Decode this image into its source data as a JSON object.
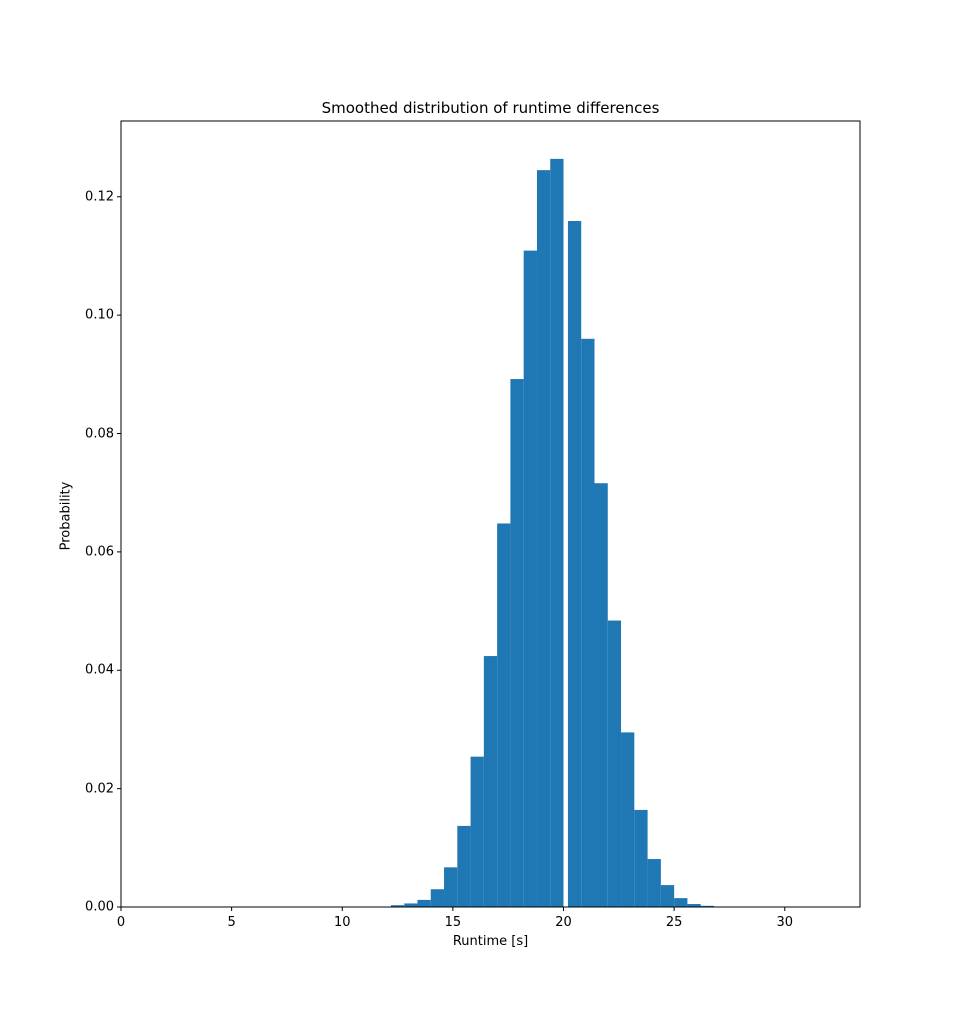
{
  "chart_data": {
    "type": "bar",
    "title": "Smoothed distribution of runtime differences",
    "xlabel": "Runtime [s]",
    "ylabel": "Probability",
    "xlim": [
      0,
      33.4
    ],
    "ylim": [
      0,
      0.1328
    ],
    "xticks": [
      0,
      5,
      10,
      15,
      20,
      25,
      30
    ],
    "xtick_labels": [
      "0",
      "5",
      "10",
      "15",
      "20",
      "25",
      "30"
    ],
    "yticks": [
      0.0,
      0.02,
      0.04,
      0.06,
      0.08,
      0.1,
      0.12
    ],
    "ytick_labels": [
      "0.00",
      "0.02",
      "0.04",
      "0.06",
      "0.08",
      "0.10",
      "0.12"
    ],
    "grid": false,
    "legend": null,
    "color": "#1f77b4",
    "bin_width": 0.6,
    "bin_starts": [
      12.2,
      12.8,
      13.4,
      14.0,
      14.6,
      15.2,
      15.8,
      16.4,
      17.0,
      17.6,
      18.2,
      18.8,
      19.4,
      20.2,
      20.8,
      21.4,
      22.0,
      22.6,
      23.2,
      23.8,
      24.4,
      25.0,
      25.6,
      26.2
    ],
    "values": [
      0.0003,
      0.0006,
      0.0012,
      0.003,
      0.0067,
      0.0137,
      0.0254,
      0.0424,
      0.0648,
      0.0892,
      0.1109,
      0.1245,
      0.1264,
      0.1159,
      0.096,
      0.0716,
      0.0484,
      0.0295,
      0.0164,
      0.0081,
      0.0037,
      0.0015,
      0.0005,
      0.0002
    ]
  }
}
